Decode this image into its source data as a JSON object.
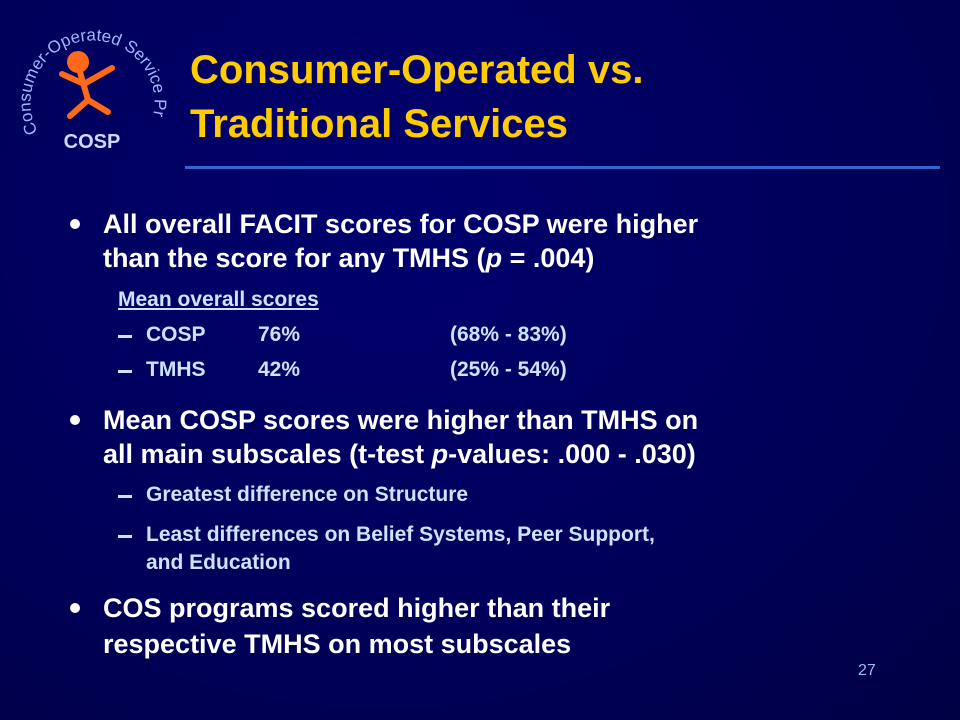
{
  "logo": {
    "ring_text": "Consumer-Operated Service Program",
    "label": "COSP"
  },
  "title": [
    "Consumer-Operated vs.",
    "Traditional Services"
  ],
  "bullets": [
    {
      "lines": [
        [
          "All overall FACIT scores for COSP were higher"
        ],
        [
          "than the score for any TMHS (",
          "p",
          " = .004)"
        ]
      ],
      "table": {
        "heading": "Mean overall scores",
        "rows": [
          [
            "COSP",
            "76%",
            "(68% - 83%)"
          ],
          [
            "TMHS",
            "42%",
            "(25% - 54%)"
          ]
        ]
      }
    },
    {
      "lines": [
        [
          "Mean COSP scores were higher than TMHS on"
        ],
        [
          "all main subscales (t-test ",
          "p",
          "-values: .000 - .030)"
        ]
      ],
      "sub": [
        [
          "Greatest difference on Structure"
        ],
        [
          "Least differences on Belief Systems, Peer Support,",
          "and Education"
        ]
      ]
    },
    {
      "lines": [
        [
          "COS programs scored higher than their"
        ],
        [
          "respective TMHS on most subscales"
        ]
      ]
    }
  ],
  "page_number": "27"
}
